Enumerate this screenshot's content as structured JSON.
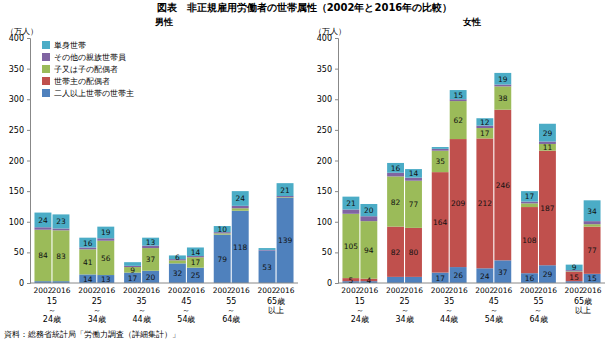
{
  "title": "図表　非正規雇用労働者の世帯属性（2002年と2016年の比較）",
  "source": "資料：総務省統計局「労働力調査（詳細集計）」",
  "chart_data": [
    {
      "type": "bar",
      "stacked": true,
      "data_labels": true,
      "grid": false,
      "legend": "top-left",
      "title": "男性",
      "y_label": "（万人）",
      "categories": [
        "2002",
        "2016",
        "2002",
        "2016",
        "2002",
        "2016",
        "2002",
        "2016",
        "2002",
        "2016",
        "2002",
        "2016"
      ],
      "x_groups": [
        [
          "15",
          "～",
          "24歳"
        ],
        [
          "25",
          "～",
          "34歳"
        ],
        [
          "35",
          "～",
          "44歳"
        ],
        [
          "45",
          "～",
          "54歳"
        ],
        [
          "55",
          "～",
          "64歳"
        ],
        [
          "65歳",
          "以上"
        ]
      ],
      "ylim": [
        0,
        400
      ],
      "yticks": [
        0,
        50,
        100,
        150,
        200,
        250,
        300,
        350,
        400
      ],
      "series": [
        {
          "name": "二人以上世帯の世帯主",
          "color": "#4f81bd",
          "values": [
            3,
            3,
            14,
            13,
            17,
            20,
            32,
            25,
            79,
            118,
            53,
            139
          ],
          "value_labels": [
            null,
            null,
            "14",
            "13",
            "17",
            "20",
            "32",
            "25",
            "79",
            "118",
            "53",
            "139"
          ]
        },
        {
          "name": "世帯主の配偶者",
          "color": "#c0504d",
          "values": [
            0,
            0,
            0,
            0,
            0,
            0,
            0,
            0,
            0,
            0,
            0,
            0
          ],
          "value_labels": [
            null,
            null,
            null,
            null,
            null,
            null,
            null,
            null,
            null,
            null,
            null,
            null
          ]
        },
        {
          "name": "子又は子の配偶者",
          "color": "#9bbb59",
          "values": [
            84,
            83,
            41,
            56,
            9,
            37,
            5,
            17,
            2,
            4,
            0,
            1
          ],
          "value_labels": [
            "84",
            "83",
            "41",
            "56",
            "9",
            "37",
            null,
            "17",
            null,
            null,
            null,
            null
          ]
        },
        {
          "name": "その他の親族世帯員",
          "color": "#8064a2",
          "values": [
            4,
            3,
            3,
            4,
            2,
            4,
            2,
            2,
            2,
            4,
            1,
            2
          ],
          "value_labels": [
            null,
            null,
            null,
            null,
            null,
            null,
            null,
            null,
            null,
            null,
            null,
            null
          ]
        },
        {
          "name": "単身世帯",
          "color": "#4bacc6",
          "values": [
            24,
            23,
            16,
            19,
            6,
            13,
            6,
            14,
            10,
            24,
            3,
            21
          ],
          "value_labels": [
            "24",
            "23",
            "16",
            "19",
            null,
            "13",
            "6",
            "14",
            "10",
            "24",
            null,
            "21"
          ]
        }
      ]
    },
    {
      "type": "bar",
      "stacked": true,
      "data_labels": true,
      "grid": false,
      "title": "女性",
      "y_label": "（万人）",
      "categories": [
        "2002",
        "2016",
        "2002",
        "2016",
        "2002",
        "2016",
        "2002",
        "2016",
        "2002",
        "2016",
        "2002",
        "2016"
      ],
      "x_groups": [
        [
          "15",
          "～",
          "24歳"
        ],
        [
          "25",
          "～",
          "34歳"
        ],
        [
          "35",
          "～",
          "44歳"
        ],
        [
          "45",
          "～",
          "54歳"
        ],
        [
          "55",
          "～",
          "64歳"
        ],
        [
          "65歳",
          "以上"
        ]
      ],
      "ylim": [
        0,
        400
      ],
      "yticks": [
        0,
        50,
        100,
        150,
        200,
        250,
        300,
        350,
        400
      ],
      "series": [
        {
          "name": "二人以上世帯の世帯主",
          "color": "#4f81bd",
          "values": [
            3,
            3,
            10,
            10,
            17,
            26,
            24,
            37,
            16,
            29,
            3,
            15
          ],
          "value_labels": [
            null,
            null,
            null,
            null,
            "17",
            "26",
            "24",
            "37",
            "16",
            "29",
            null,
            "15"
          ]
        },
        {
          "name": "世帯主の配偶者",
          "color": "#c0504d",
          "values": [
            5,
            4,
            82,
            80,
            164,
            209,
            212,
            246,
            108,
            187,
            15,
            77
          ],
          "value_labels": [
            "5",
            "4",
            "82",
            "80",
            "164",
            "209",
            "212",
            "246",
            "108",
            "187",
            "15",
            "77"
          ]
        },
        {
          "name": "子又は子の配偶者",
          "color": "#9bbb59",
          "values": [
            105,
            94,
            82,
            77,
            35,
            62,
            17,
            38,
            6,
            11,
            1,
            4
          ],
          "value_labels": [
            "105",
            "94",
            "82",
            "77",
            "35",
            "62",
            "17",
            "38",
            null,
            "11",
            null,
            null
          ]
        },
        {
          "name": "その他の親族世帯員",
          "color": "#8064a2",
          "values": [
            7,
            8,
            6,
            5,
            3,
            3,
            4,
            3,
            3,
            4,
            2,
            5
          ],
          "value_labels": [
            null,
            null,
            null,
            null,
            null,
            null,
            null,
            null,
            null,
            null,
            null,
            null
          ]
        },
        {
          "name": "単身世帯",
          "color": "#4bacc6",
          "values": [
            21,
            20,
            16,
            14,
            3,
            15,
            12,
            19,
            17,
            29,
            9,
            34
          ],
          "value_labels": [
            "21",
            "20",
            "16",
            "14",
            null,
            "15",
            "12",
            "19",
            "17",
            "29",
            "9",
            "34"
          ]
        }
      ]
    }
  ]
}
